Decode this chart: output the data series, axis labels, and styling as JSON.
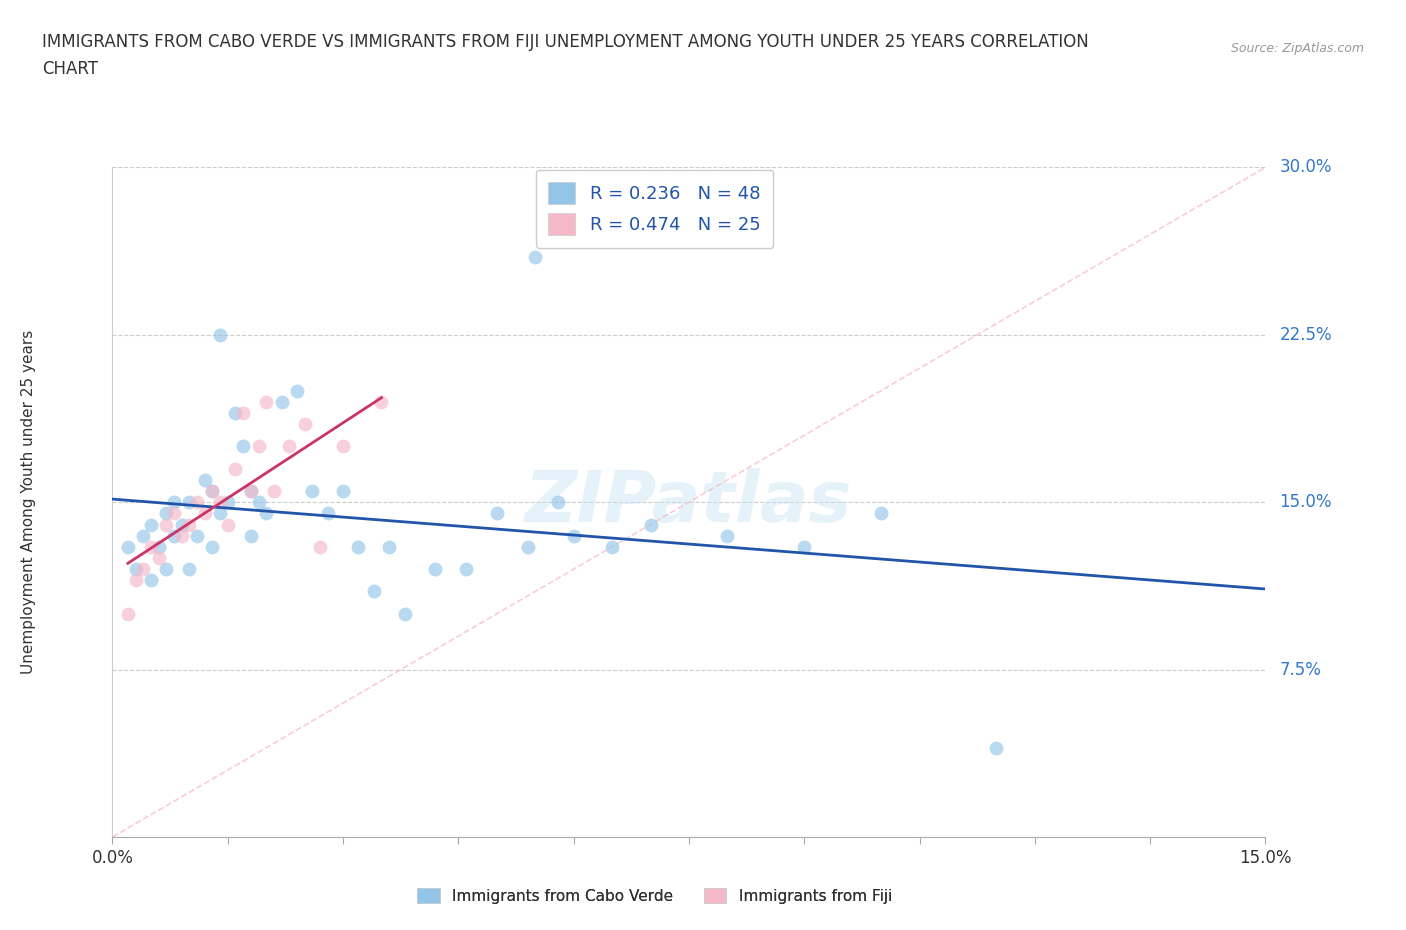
{
  "title_line1": "IMMIGRANTS FROM CABO VERDE VS IMMIGRANTS FROM FIJI UNEMPLOYMENT AMONG YOUTH UNDER 25 YEARS CORRELATION",
  "title_line2": "CHART",
  "source": "Source: ZipAtlas.com",
  "ylabel": "Unemployment Among Youth under 25 years",
  "legend_bottom": [
    "Immigrants from Cabo Verde",
    "Immigrants from Fiji"
  ],
  "cabo_verde_color": "#92c5e8",
  "fiji_color": "#f4b8c8",
  "cabo_verde_line_color": "#2255aa",
  "fiji_line_color": "#cc3366",
  "diag_line_color": "#f4b8c8",
  "R_cabo": 0.236,
  "N_cabo": 48,
  "R_fiji": 0.474,
  "N_fiji": 25,
  "xlim": [
    0.0,
    0.15
  ],
  "ylim": [
    0.0,
    0.3
  ],
  "cabo_verde_x": [
    0.002,
    0.003,
    0.004,
    0.005,
    0.005,
    0.006,
    0.007,
    0.007,
    0.008,
    0.008,
    0.009,
    0.01,
    0.01,
    0.011,
    0.012,
    0.013,
    0.013,
    0.014,
    0.014,
    0.015,
    0.016,
    0.017,
    0.018,
    0.018,
    0.019,
    0.02,
    0.022,
    0.024,
    0.026,
    0.028,
    0.03,
    0.032,
    0.034,
    0.036,
    0.038,
    0.042,
    0.046,
    0.05,
    0.054,
    0.058,
    0.06,
    0.065,
    0.07,
    0.08,
    0.09,
    0.1,
    0.115,
    0.055
  ],
  "cabo_verde_y": [
    0.13,
    0.12,
    0.135,
    0.14,
    0.115,
    0.13,
    0.12,
    0.145,
    0.135,
    0.15,
    0.14,
    0.15,
    0.12,
    0.135,
    0.16,
    0.155,
    0.13,
    0.225,
    0.145,
    0.15,
    0.19,
    0.175,
    0.155,
    0.135,
    0.15,
    0.145,
    0.195,
    0.2,
    0.155,
    0.145,
    0.155,
    0.13,
    0.11,
    0.13,
    0.1,
    0.12,
    0.12,
    0.145,
    0.13,
    0.15,
    0.135,
    0.13,
    0.14,
    0.135,
    0.13,
    0.145,
    0.04,
    0.26
  ],
  "fiji_x": [
    0.002,
    0.003,
    0.004,
    0.005,
    0.006,
    0.007,
    0.008,
    0.009,
    0.01,
    0.011,
    0.012,
    0.013,
    0.014,
    0.015,
    0.016,
    0.017,
    0.018,
    0.019,
    0.02,
    0.021,
    0.023,
    0.025,
    0.027,
    0.03,
    0.035
  ],
  "fiji_y": [
    0.1,
    0.115,
    0.12,
    0.13,
    0.125,
    0.14,
    0.145,
    0.135,
    0.14,
    0.15,
    0.145,
    0.155,
    0.15,
    0.14,
    0.165,
    0.19,
    0.155,
    0.175,
    0.195,
    0.155,
    0.175,
    0.185,
    0.13,
    0.175,
    0.195
  ],
  "watermark": "ZIPatlas",
  "background_color": "#ffffff",
  "grid_color": "#cccccc"
}
